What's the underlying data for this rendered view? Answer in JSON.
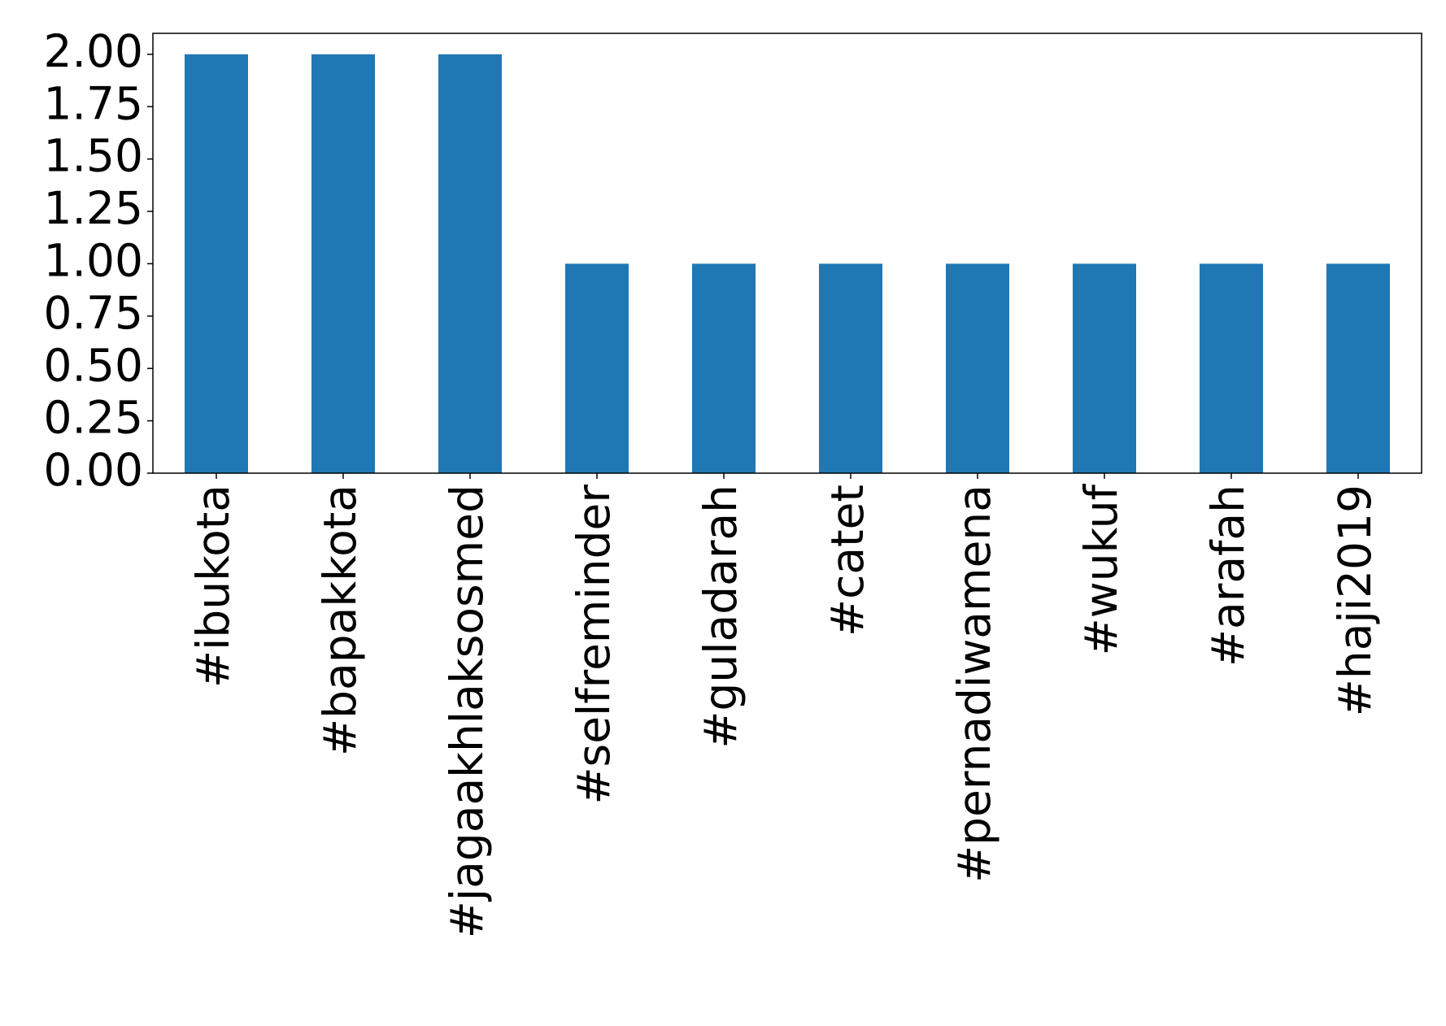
{
  "chart_data": {
    "type": "bar",
    "categories": [
      "#ibukota",
      "#bapakkota",
      "#jagaakhlaksosmed",
      "#selfreminder",
      "#guladarah",
      "#catet",
      "#pernadiwamena",
      "#wukuf",
      "#arafah",
      "#haji2019"
    ],
    "values": [
      2,
      2,
      2,
      1,
      1,
      1,
      1,
      1,
      1,
      1
    ],
    "color": "#1f77b4",
    "ylim": [
      0,
      2.1
    ],
    "yticks": [
      {
        "value": 0,
        "label": "0.00"
      },
      0.25,
      {
        "value": 0.5,
        "label": "0.50"
      },
      0.75,
      {
        "value": 1,
        "label": "1.00"
      },
      1.25,
      {
        "value": 1.5,
        "label": "1.50"
      },
      1.75,
      {
        "value": 2,
        "label": "2.00"
      }
    ],
    "grid": false
  }
}
